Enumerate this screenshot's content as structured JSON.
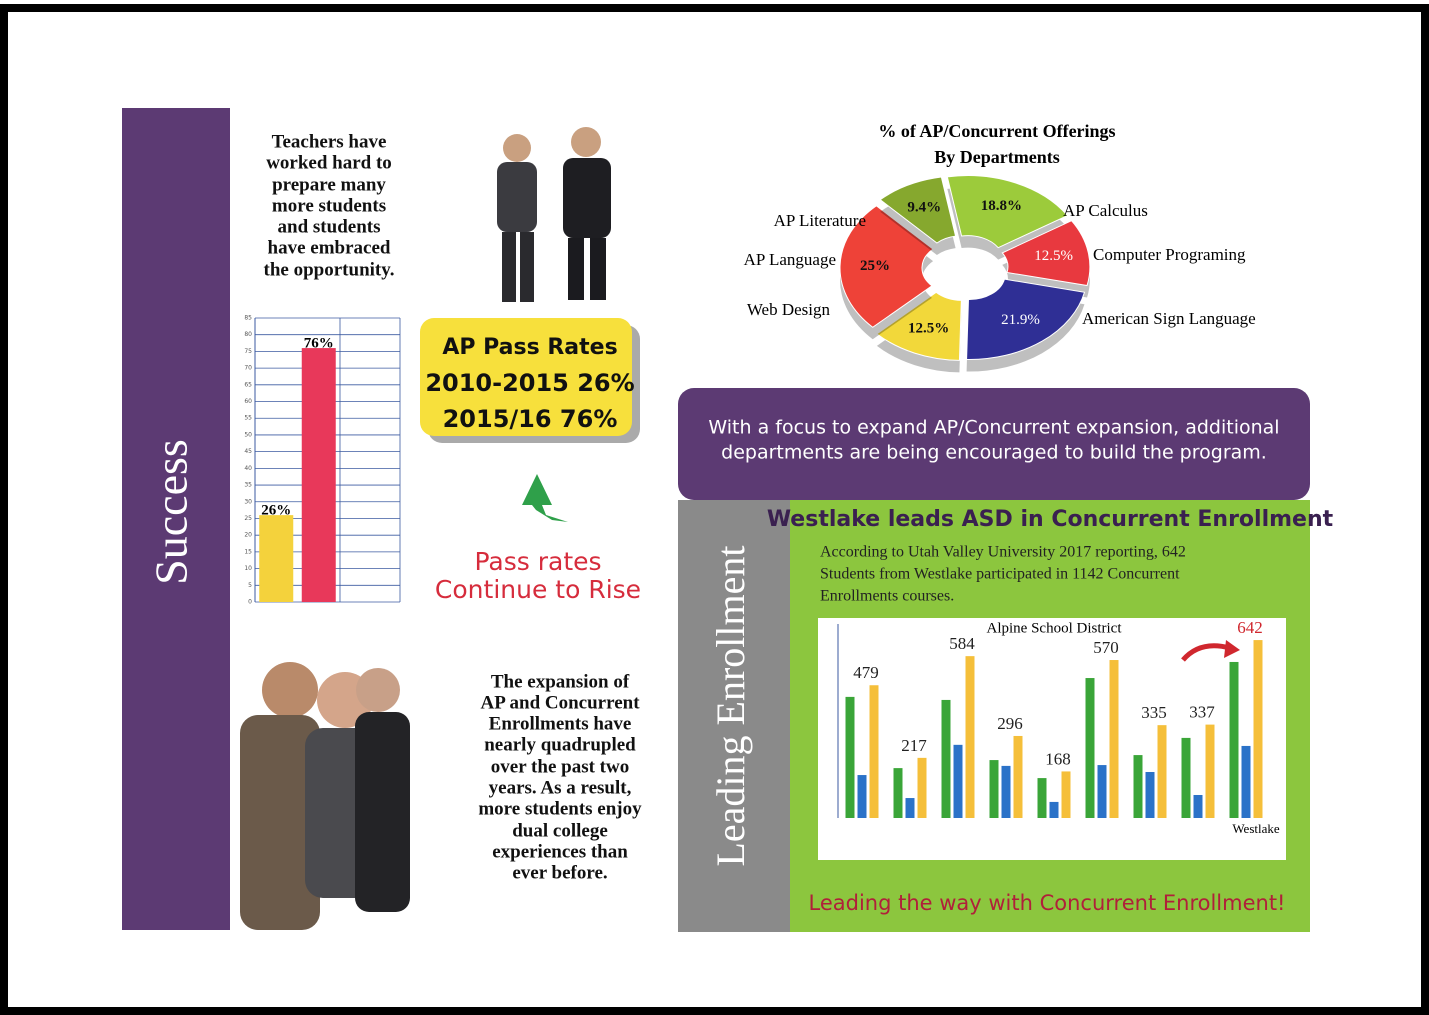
{
  "success": {
    "label": "Success",
    "intro": [
      "Teachers have",
      "worked hard to",
      "prepare many",
      "more students",
      "and students",
      "have embraced",
      "the opportunity."
    ],
    "outro": [
      "The expansion of",
      "AP and Concurrent",
      "Enrollments have",
      "nearly quadrupled",
      "over the past two",
      "years.   As a result,",
      "more students enjoy",
      "dual college",
      "experiences than",
      "ever before."
    ]
  },
  "pass_box": {
    "title": "AP Pass Rates",
    "lines": [
      "2010-2015 26%",
      "2015/16 76%"
    ]
  },
  "rise": [
    "Pass rates",
    "Continue to Rise"
  ],
  "banner": [
    "With a focus to expand AP/Concurrent expansion, additional",
    "departments are being encouraged to build the program."
  ],
  "leading": "Leading Enrollment",
  "headline": "Westlake leads ASD in Concurrent Enrollment",
  "report": [
    "According to Utah Valley University 2017 reporting, 642",
    "Students from Westlake participated in 1142 Concurrent",
    "Enrollments courses."
  ],
  "footer": "Leading the way with Concurrent Enrollment!",
  "chart_data": [
    {
      "type": "bar",
      "categories": [
        null,
        null
      ],
      "values": [
        26,
        76
      ],
      "value_labels": [
        "26%",
        "76%"
      ],
      "colors": [
        "#f4d23c",
        "#e8385a"
      ],
      "ylim": [
        0,
        85
      ],
      "yticks": [
        0,
        5,
        10,
        15,
        20,
        25,
        30,
        35,
        40,
        45,
        50,
        55,
        60,
        65,
        70,
        75,
        80,
        85
      ],
      "grid": true
    },
    {
      "type": "pie",
      "title": [
        "% of  AP/Concurrent Offerings",
        "By Departments"
      ],
      "categories": [
        "AP Calculus",
        "Computer Programing",
        "American Sign Language",
        "Web Design",
        "AP Language",
        "AP Literature"
      ],
      "values": [
        18.8,
        12.5,
        21.9,
        12.5,
        25,
        9.4
      ],
      "value_labels": [
        "18.8%",
        "12.5%",
        "21.9%",
        "12.5%",
        "25%",
        "9.4%"
      ],
      "colors": [
        "#9ccb3b",
        "#e8393f",
        "#2f2f95",
        "#f2d83a",
        "#ee4238",
        "#86a82e"
      ]
    },
    {
      "type": "bar",
      "title": "Alpine School District",
      "categories": [
        null,
        null,
        null,
        null,
        null,
        null,
        null,
        null,
        "Westlake"
      ],
      "series": [
        {
          "color": "#3aa538",
          "values": [
            437,
            180,
            426,
            209,
            144,
            505,
            227,
            289,
            563
          ]
        },
        {
          "color": "#2b72c8",
          "values": [
            155,
            72,
            264,
            188,
            58,
            191,
            166,
            83,
            260
          ]
        },
        {
          "color": "#f5bf3a",
          "values": [
            479,
            217,
            584,
            296,
            168,
            570,
            335,
            337,
            642
          ]
        }
      ],
      "ylim": [
        0,
        700
      ]
    }
  ]
}
